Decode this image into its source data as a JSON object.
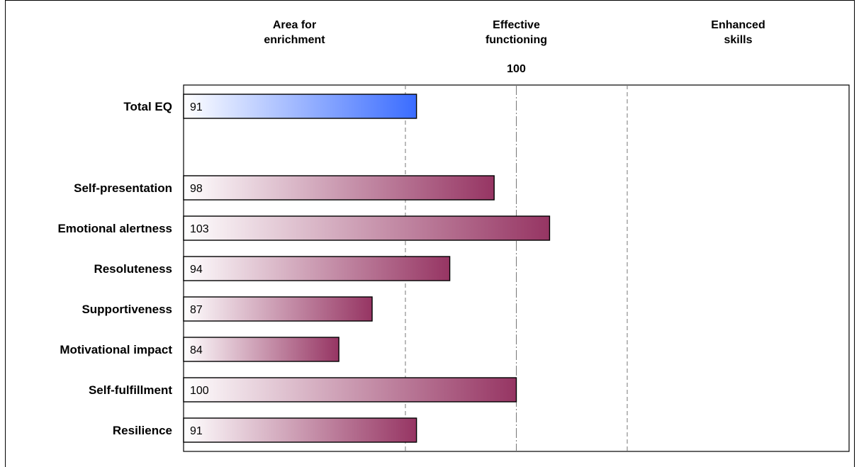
{
  "chart_data": {
    "type": "bar",
    "orientation": "horizontal",
    "bands": [
      [
        "Area for",
        "enrichment"
      ],
      [
        "Effective",
        "functioning"
      ],
      [
        "Enhanced",
        "skills"
      ]
    ],
    "reference_value": 100,
    "reference_label": "100",
    "xlim": [
      70,
      130
    ],
    "dividers": [
      {
        "value": 90,
        "style": "dashed"
      },
      {
        "value": 100,
        "style": "dashdot"
      },
      {
        "value": 110,
        "style": "dashed"
      }
    ],
    "categories": [
      "Total EQ",
      "Self-presentation",
      "Emotional alertness",
      "Resoluteness",
      "Supportiveness",
      "Motivational impact",
      "Self-fulfillment",
      "Resilience"
    ],
    "values": [
      91,
      98,
      103,
      94,
      87,
      84,
      100,
      91
    ],
    "value_labels": [
      "91",
      "98",
      "103",
      "94",
      "87",
      "84",
      "100",
      "91"
    ],
    "colors": {
      "total": "#3a6cff",
      "subscale": "#963563",
      "start": "#ffffff"
    }
  }
}
